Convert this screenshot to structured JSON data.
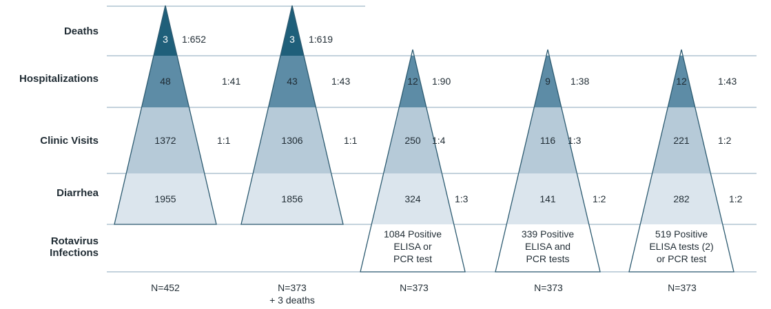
{
  "row_labels": {
    "deaths": "Deaths",
    "hospitalizations": "Hospitalizations",
    "clinic_visits": "Clinic Visits",
    "diarrhea": "Diarrhea",
    "infections_line1": "Rotavirus",
    "infections_line2": "Infections"
  },
  "colors": {
    "deaths": "#1f5f7a",
    "hospitalizations": "#5d8ca6",
    "clinic_visits": "#b6cad8",
    "diarrhea": "#dbe5ed",
    "infections": "#ffffff",
    "outline": "#2c5a70",
    "gridline": "#9fb8c8"
  },
  "pyramids": [
    {
      "deaths": "3",
      "deaths_ratio": "1:652",
      "hospitalizations": "48",
      "hospitalizations_ratio": "1:41",
      "clinic_visits": "1372",
      "clinic_visits_ratio": "1:1",
      "diarrhea": "1955",
      "diarrhea_ratio": "",
      "infections": [],
      "n_line1": "N=452",
      "n_line2": ""
    },
    {
      "deaths": "3",
      "deaths_ratio": "1:619",
      "hospitalizations": "43",
      "hospitalizations_ratio": "1:43",
      "clinic_visits": "1306",
      "clinic_visits_ratio": "1:1",
      "diarrhea": "1856",
      "diarrhea_ratio": "",
      "infections": [],
      "n_line1": "N=373",
      "n_line2": "+ 3 deaths"
    },
    {
      "deaths": "",
      "deaths_ratio": "",
      "hospitalizations": "12",
      "hospitalizations_ratio": "1:90",
      "clinic_visits": "250",
      "clinic_visits_ratio": "1:4",
      "diarrhea": "324",
      "diarrhea_ratio": "1:3",
      "infections": [
        "1084 Positive",
        "ELISA or",
        "PCR test"
      ],
      "n_line1": "N=373",
      "n_line2": ""
    },
    {
      "deaths": "",
      "deaths_ratio": "",
      "hospitalizations": "9",
      "hospitalizations_ratio": "1:38",
      "clinic_visits": "116",
      "clinic_visits_ratio": "1:3",
      "diarrhea": "141",
      "diarrhea_ratio": "1:2",
      "infections": [
        "339 Positive",
        "ELISA and",
        "PCR tests"
      ],
      "n_line1": "N=373",
      "n_line2": ""
    },
    {
      "deaths": "",
      "deaths_ratio": "",
      "hospitalizations": "12",
      "hospitalizations_ratio": "1:43",
      "clinic_visits": "221",
      "clinic_visits_ratio": "1:2",
      "diarrhea": "282",
      "diarrhea_ratio": "1:2",
      "infections": [
        "519 Positive",
        "ELISA tests (2)",
        "or PCR test"
      ],
      "n_line1": "N=373",
      "n_line2": ""
    }
  ]
}
